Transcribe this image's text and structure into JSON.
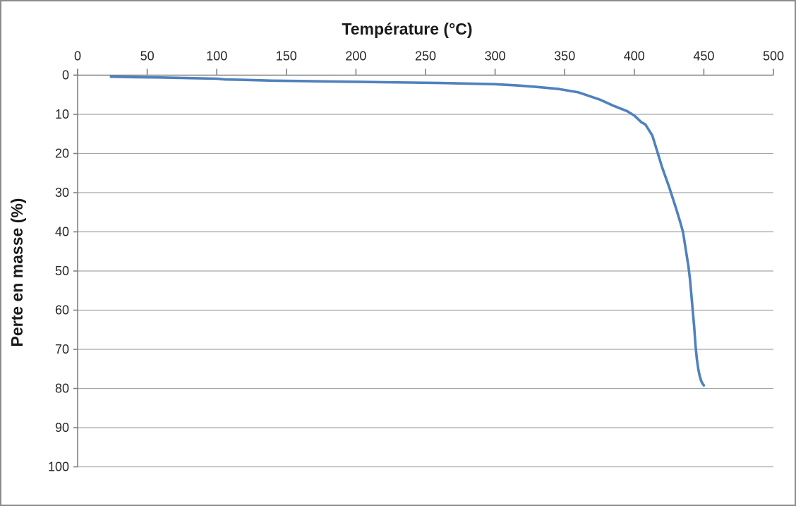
{
  "window": {
    "background": "#ffffff",
    "border_color": "#8c8c8c"
  },
  "chart_data": {
    "type": "line",
    "title": "Température (°C)",
    "ylabel": "Perte en masse (%)",
    "xlabel": "Température (°C)",
    "legend": "none",
    "grid": "horizontal",
    "x_axis": {
      "position": "top",
      "min": 0,
      "max": 500,
      "ticks": [
        0,
        50,
        100,
        150,
        200,
        250,
        300,
        350,
        400,
        450,
        500
      ]
    },
    "y_axis": {
      "position": "left",
      "direction": "down",
      "min": 0,
      "max": 100,
      "ticks": [
        0,
        10,
        20,
        30,
        40,
        50,
        60,
        70,
        80,
        90,
        100
      ]
    },
    "series": [
      {
        "color": "#4f81bd",
        "points": [
          [
            24,
            0.4
          ],
          [
            40,
            0.5
          ],
          [
            60,
            0.6
          ],
          [
            80,
            0.75
          ],
          [
            100,
            0.9
          ],
          [
            106,
            1.1
          ],
          [
            120,
            1.2
          ],
          [
            140,
            1.4
          ],
          [
            160,
            1.5
          ],
          [
            180,
            1.6
          ],
          [
            200,
            1.7
          ],
          [
            220,
            1.8
          ],
          [
            240,
            1.9
          ],
          [
            260,
            2.0
          ],
          [
            280,
            2.15
          ],
          [
            300,
            2.3
          ],
          [
            315,
            2.6
          ],
          [
            330,
            3.0
          ],
          [
            345,
            3.5
          ],
          [
            360,
            4.4
          ],
          [
            375,
            6.2
          ],
          [
            385,
            7.8
          ],
          [
            395,
            9.2
          ],
          [
            400,
            10.3
          ],
          [
            405,
            12.0
          ],
          [
            408,
            12.6
          ],
          [
            413,
            15.4
          ],
          [
            417,
            20.0
          ],
          [
            420,
            23.5
          ],
          [
            425,
            28.5
          ],
          [
            430,
            34.0
          ],
          [
            433,
            37.5
          ],
          [
            435,
            40.0
          ],
          [
            437,
            44.5
          ],
          [
            439,
            49.0
          ],
          [
            440,
            52.0
          ],
          [
            441,
            56.0
          ],
          [
            442,
            60.0
          ],
          [
            443,
            64.0
          ],
          [
            444,
            69.0
          ],
          [
            445,
            72.5
          ],
          [
            446,
            75.0
          ],
          [
            447,
            76.8
          ],
          [
            448,
            78.0
          ],
          [
            449,
            78.7
          ],
          [
            450,
            79.2
          ]
        ]
      }
    ]
  },
  "style": {
    "line_color": "#4f81bd",
    "axis_color": "#808080",
    "gridline_color": "#a6a6a6",
    "text_color": "#262626"
  }
}
